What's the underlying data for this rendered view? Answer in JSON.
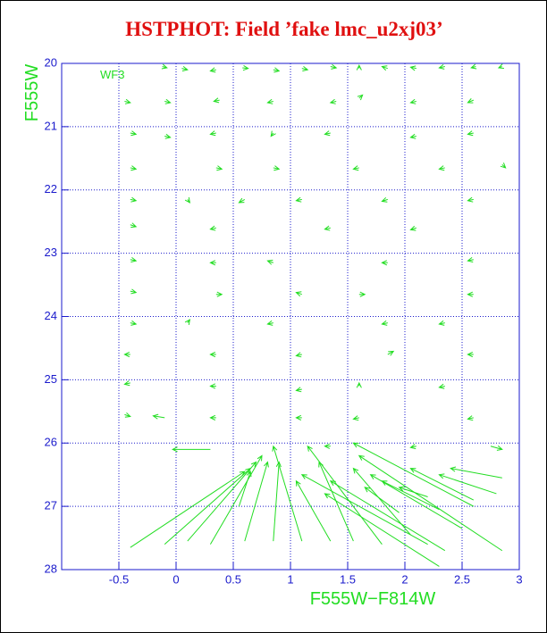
{
  "chart_data": {
    "type": "vector",
    "title": "HSTPHOT: Field ’fake lmc_u2xj03’",
    "annotation": "WF3",
    "x_label": "F555W−F814W",
    "y_label": "F555W",
    "xlim": [
      -1,
      3
    ],
    "ylim": [
      20,
      28
    ],
    "y_inverted": true,
    "xticks": [
      -0.5,
      0,
      0.5,
      1,
      1.5,
      2,
      2.5,
      3
    ],
    "yticks": [
      20,
      21,
      22,
      23,
      24,
      25,
      26,
      27,
      28
    ],
    "grid": true,
    "color": "#22dd22",
    "arrows": {
      "x0": [
        -0.4,
        -0.1,
        0.1,
        0.3,
        0.6,
        0.85,
        1.1,
        0.55,
        1.35,
        2.2,
        2.35,
        1.8,
        1.55,
        2.3,
        2.85,
        2.5,
        2.6,
        2.05,
        1.95,
        2.6,
        2.3,
        2.85,
        2.8,
        2.2,
        0.3,
        2.75,
        -0.45,
        -0.4,
        -0.12,
        0.05,
        0.35,
        0.58,
        0.85,
        1.1,
        1.35,
        1.6,
        1.85,
        2.1,
        2.35,
        2.62,
        2.85,
        -0.1,
        0.38,
        0.85,
        1.4,
        1.6,
        2.1,
        2.6,
        -0.1,
        0.35,
        0.85,
        1.35,
        2.1,
        2.6,
        -0.4,
        0.35,
        0.85,
        1.6,
        2.35,
        2.85,
        -0.4,
        0.1,
        0.6,
        1.1,
        1.85,
        2.6,
        -0.4,
        0.35,
        1.35,
        2.1,
        -0.4,
        0.35,
        0.85,
        1.85,
        2.6,
        -0.4,
        0.35,
        1.1,
        1.6,
        2.6,
        -0.4,
        0.1,
        0.85,
        1.85,
        2.35,
        -0.4,
        0.35,
        1.1,
        1.85,
        2.6,
        -0.4,
        0.35,
        1.1,
        1.6,
        2.35,
        -0.45,
        -0.1,
        0.35,
        1.1,
        1.6,
        2.6,
        1.35,
        2.1
      ],
      "y0": [
        27.65,
        27.6,
        27.55,
        27.6,
        27.55,
        27.55,
        27.55,
        27.0,
        27.55,
        27.6,
        27.7,
        27.6,
        27.55,
        27.95,
        27.7,
        27.35,
        27.0,
        27.45,
        27.1,
        26.9,
        27.05,
        26.55,
        26.8,
        26.85,
        26.1,
        26.05,
        20.6,
        21.1,
        20.05,
        20.08,
        20.1,
        20.07,
        20.1,
        20.08,
        20.05,
        20.08,
        20.08,
        20.08,
        20.05,
        20.05,
        20.05,
        20.6,
        20.58,
        20.6,
        20.6,
        20.55,
        20.6,
        20.58,
        21.15,
        21.1,
        21.1,
        21.1,
        21.15,
        21.1,
        21.65,
        21.65,
        21.65,
        21.65,
        21.65,
        21.6,
        22.15,
        22.15,
        22.15,
        22.15,
        22.15,
        22.15,
        22.55,
        22.6,
        22.6,
        22.6,
        23.1,
        23.15,
        23.15,
        23.15,
        23.1,
        23.6,
        23.65,
        23.65,
        23.65,
        23.65,
        24.1,
        24.1,
        24.1,
        24.1,
        24.1,
        24.6,
        24.6,
        24.6,
        24.6,
        24.6,
        25.05,
        25.1,
        25.15,
        25.1,
        25.1,
        25.55,
        25.6,
        25.6,
        25.6,
        25.6,
        25.6,
        26.05,
        26.05
      ],
      "x": [
        0.6,
        0.65,
        0.7,
        0.75,
        0.8,
        0.9,
        0.85,
        0.65,
        1.05,
        1.1,
        1.35,
        1.15,
        1.25,
        1.3,
        1.6,
        1.7,
        1.55,
        1.55,
        1.65,
        2.05,
        1.8,
        2.4,
        2.3,
        1.95,
        -0.03,
        2.85,
        -0.4,
        -0.35,
        -0.08,
        0.1,
        0.3,
        0.63,
        0.9,
        1.15,
        1.4,
        1.6,
        1.8,
        2.05,
        2.3,
        2.58,
        2.82,
        -0.05,
        0.33,
        0.8,
        1.35,
        1.63,
        2.05,
        2.55,
        -0.05,
        0.3,
        0.83,
        1.3,
        2.05,
        2.55,
        -0.35,
        0.4,
        0.9,
        1.55,
        2.3,
        2.88,
        -0.35,
        0.12,
        0.55,
        1.05,
        1.8,
        2.55,
        -0.35,
        0.3,
        1.3,
        2.05,
        -0.35,
        0.3,
        0.8,
        1.8,
        2.55,
        -0.35,
        0.4,
        1.05,
        1.65,
        2.55,
        -0.35,
        0.12,
        0.8,
        1.8,
        2.3,
        -0.45,
        0.3,
        1.05,
        1.9,
        2.55,
        -0.45,
        0.3,
        1.05,
        1.6,
        2.3,
        -0.4,
        -0.2,
        0.3,
        1.05,
        1.55,
        2.55,
        1.3,
        2.05
      ],
      "y": [
        26.45,
        26.4,
        26.3,
        26.2,
        26.3,
        26.3,
        26.05,
        26.45,
        26.6,
        26.5,
        26.6,
        26.05,
        26.3,
        26.8,
        26.2,
        26.5,
        26.0,
        26.4,
        26.7,
        26.4,
        26.6,
        26.4,
        26.5,
        26.7,
        26.1,
        26.1,
        20.62,
        21.12,
        20.07,
        20.1,
        20.12,
        20.08,
        20.12,
        20.1,
        20.07,
        20.03,
        20.05,
        20.06,
        20.07,
        20.07,
        20.07,
        20.62,
        20.6,
        20.62,
        20.62,
        20.5,
        20.62,
        20.62,
        21.17,
        21.12,
        21.15,
        21.12,
        21.17,
        21.12,
        21.67,
        21.67,
        21.67,
        21.67,
        21.67,
        21.65,
        22.17,
        22.2,
        22.2,
        22.17,
        22.18,
        22.17,
        22.58,
        22.62,
        22.62,
        22.63,
        23.12,
        23.15,
        23.12,
        23.15,
        23.12,
        23.62,
        23.65,
        23.62,
        23.65,
        23.65,
        24.12,
        24.05,
        24.12,
        24.12,
        24.12,
        24.6,
        24.6,
        24.62,
        24.55,
        24.6,
        25.07,
        25.1,
        25.17,
        25.05,
        25.12,
        25.58,
        25.57,
        25.6,
        25.6,
        25.62,
        25.62,
        26.05,
        26.07
      ]
    }
  }
}
